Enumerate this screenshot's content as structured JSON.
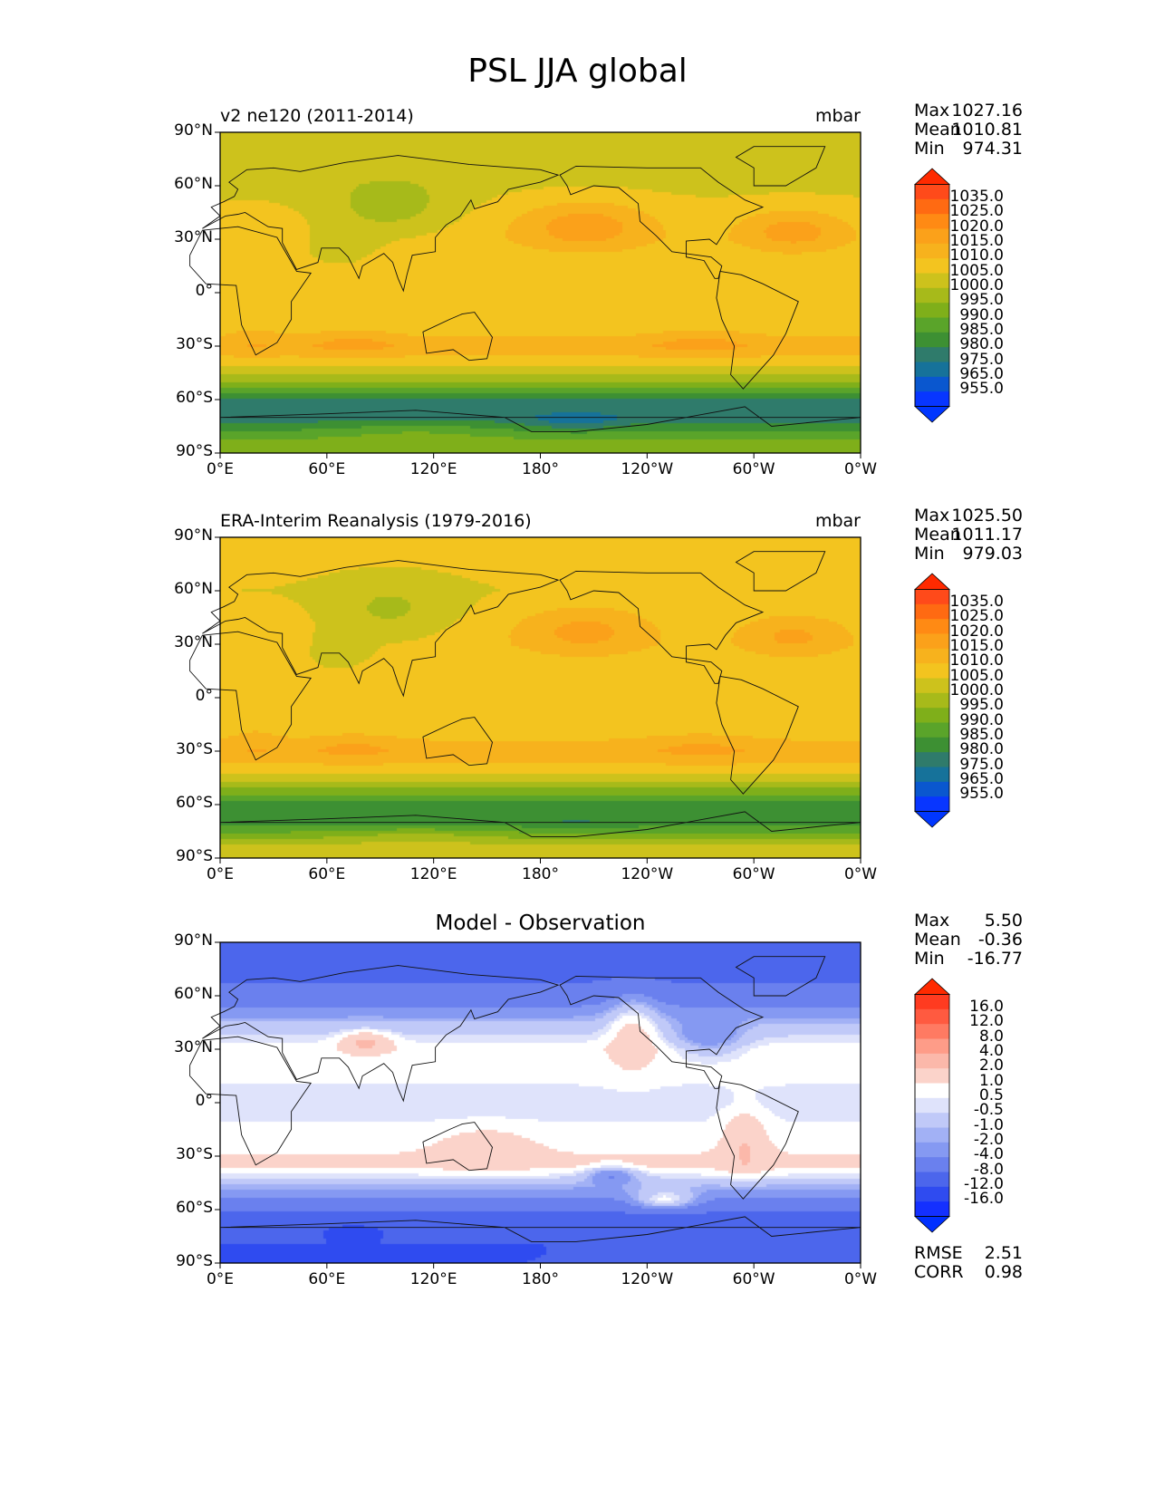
{
  "figure": {
    "title": "PSL JJA global"
  },
  "chart_data": [
    {
      "type": "heatmap",
      "panel": "test",
      "title_left": "v2 ne120 (2011-2014)",
      "title_right": "mbar",
      "stats": {
        "labels": [
          "Max",
          "Mean",
          "Min"
        ],
        "values": [
          "1027.16",
          "1010.81",
          "974.31"
        ]
      },
      "lat_ticks": [
        "90°N",
        "60°N",
        "30°N",
        "0°",
        "30°S",
        "60°S",
        "90°S"
      ],
      "lon_ticks": [
        "0°E",
        "60°E",
        "120°E",
        "180°",
        "120°W",
        "60°W",
        "0°W"
      ],
      "colorbar": {
        "ticks": [
          "1035.0",
          "1025.0",
          "1020.0",
          "1015.0",
          "1010.0",
          "1005.0",
          "1000.0",
          "995.0",
          "990.0",
          "985.0",
          "980.0",
          "975.0",
          "965.0",
          "955.0"
        ],
        "colors": [
          "#ff4a1a",
          "#ff6a12",
          "#ff8a14",
          "#fba11a",
          "#f7b21d",
          "#f3c41f",
          "#cdc21c",
          "#a7ba1a",
          "#7faf1a",
          "#5aa42a",
          "#3d9033",
          "#2f7b6b",
          "#16729a",
          "#0a57cf",
          "#0836ff"
        ],
        "over": "#ff2a00",
        "under": "#0036ff"
      },
      "field": {
        "lat_deg": [
          90,
          60,
          30,
          15,
          0,
          -20,
          -30,
          -40,
          -50,
          -60,
          -70,
          -85
        ],
        "psl_mbar": [
          1009,
          1009,
          1013,
          1011,
          1010,
          1012,
          1018,
          1012,
          1000,
          985,
          982,
          998
        ]
      }
    },
    {
      "type": "heatmap",
      "panel": "reference",
      "title_left": "ERA-Interim Reanalysis (1979-2016)",
      "title_right": "mbar",
      "stats": {
        "labels": [
          "Max",
          "Mean",
          "Min"
        ],
        "values": [
          "1025.50",
          "1011.17",
          "979.03"
        ]
      },
      "lat_ticks": [
        "90°N",
        "60°N",
        "30°N",
        "0°",
        "30°S",
        "60°S",
        "90°S"
      ],
      "lon_ticks": [
        "0°E",
        "60°E",
        "120°E",
        "180°",
        "120°W",
        "60°W",
        "0°W"
      ],
      "colorbar": {
        "ticks": [
          "1035.0",
          "1025.0",
          "1020.0",
          "1015.0",
          "1010.0",
          "1005.0",
          "1000.0",
          "995.0",
          "990.0",
          "985.0",
          "980.0",
          "975.0",
          "965.0",
          "955.0"
        ],
        "colors": [
          "#ff4a1a",
          "#ff6a12",
          "#ff8a14",
          "#fba11a",
          "#f7b21d",
          "#f3c41f",
          "#cdc21c",
          "#a7ba1a",
          "#7faf1a",
          "#5aa42a",
          "#3d9033",
          "#2f7b6b",
          "#16729a",
          "#0a57cf",
          "#0836ff"
        ],
        "over": "#ff2a00",
        "under": "#0036ff"
      },
      "field": {
        "lat_deg": [
          90,
          60,
          30,
          15,
          0,
          -20,
          -30,
          -40,
          -50,
          -60,
          -70,
          -85
        ],
        "psl_mbar": [
          1012,
          1010,
          1013,
          1011,
          1011,
          1013,
          1018,
          1013,
          1001,
          988,
          987,
          1008
        ]
      }
    },
    {
      "type": "heatmap",
      "panel": "difference",
      "title_center": "Model - Observation",
      "stats": {
        "labels": [
          "Max",
          "Mean",
          "Min"
        ],
        "values": [
          "5.50",
          "-0.36",
          "-16.77"
        ]
      },
      "metrics": {
        "labels": [
          "RMSE",
          "CORR"
        ],
        "values": [
          "2.51",
          "0.98"
        ]
      },
      "lat_ticks": [
        "90°N",
        "60°N",
        "30°N",
        "0°",
        "30°S",
        "60°S",
        "90°S"
      ],
      "lon_ticks": [
        "0°E",
        "60°E",
        "120°E",
        "180°",
        "120°W",
        "60°W",
        "0°W"
      ],
      "colorbar": {
        "ticks": [
          "16.0",
          "12.0",
          "8.0",
          "4.0",
          "2.0",
          "1.0",
          "0.5",
          "-0.5",
          "-1.0",
          "-2.0",
          "-4.0",
          "-8.0",
          "-12.0",
          "-16.0"
        ],
        "colors": [
          "#ff3b20",
          "#ff5a40",
          "#ff7a62",
          "#fe9c88",
          "#fbb8aa",
          "#fbd3ca",
          "#ffffff",
          "#dfe3fb",
          "#c0c9f8",
          "#a2b1f5",
          "#8599f2",
          "#6a80ee",
          "#4c66ec",
          "#2f4bf0",
          "#1430ff"
        ],
        "over": "#ff2a00",
        "under": "#0030ff"
      },
      "field": {
        "lat_deg": [
          90,
          75,
          60,
          45,
          30,
          15,
          0,
          -20,
          -35,
          -45,
          -55,
          -65,
          -80
        ],
        "diff_mbar": [
          -6,
          -5,
          -3,
          -0.5,
          1.5,
          1.2,
          0.6,
          1.3,
          2.5,
          -0.3,
          -2.5,
          -5,
          -8
        ]
      }
    }
  ]
}
